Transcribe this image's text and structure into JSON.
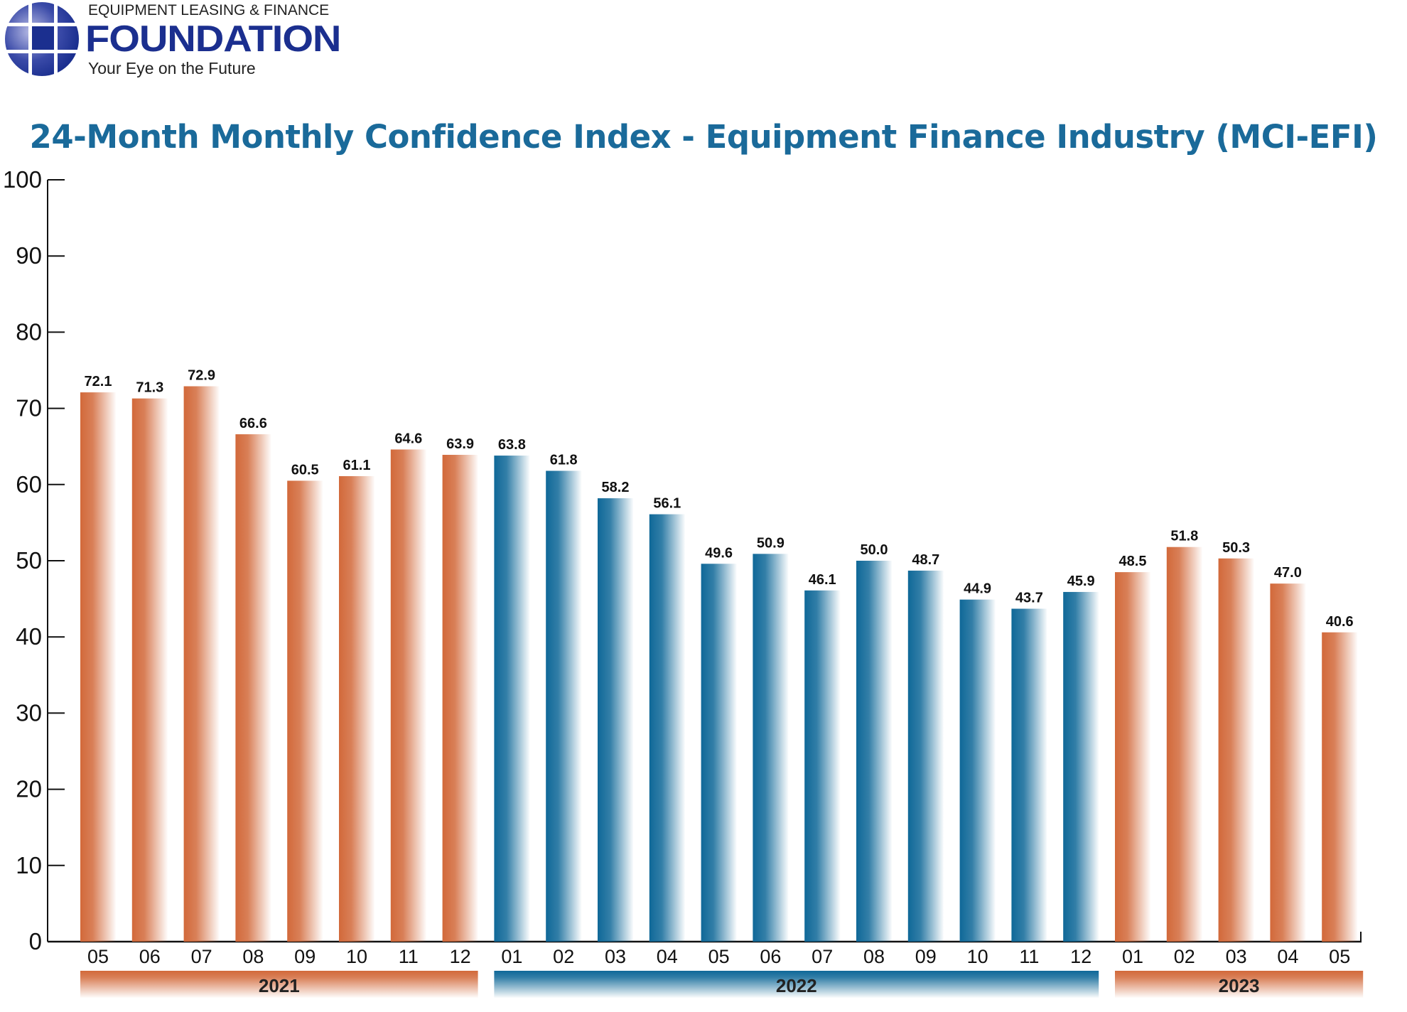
{
  "logo": {
    "top": "EQUIPMENT LEASING & FINANCE",
    "main": "FOUNDATION",
    "tagline": "Your Eye on the Future"
  },
  "chart_data": {
    "type": "bar",
    "title": "24-Month Monthly Confidence Index - Equipment Finance Industry (MCI-EFI)",
    "xlabel": "",
    "ylabel": "",
    "ylim": [
      0,
      100
    ],
    "yticks": [
      0,
      10,
      20,
      30,
      40,
      50,
      60,
      70,
      80,
      90,
      100
    ],
    "grid": false,
    "categories": [
      "05",
      "06",
      "07",
      "08",
      "09",
      "10",
      "11",
      "12",
      "01",
      "02",
      "03",
      "04",
      "05",
      "06",
      "07",
      "08",
      "09",
      "10",
      "11",
      "12",
      "01",
      "02",
      "03",
      "04",
      "05"
    ],
    "years": [
      {
        "label": "2021",
        "start": 0,
        "end": 7,
        "color": "#d2693a"
      },
      {
        "label": "2022",
        "start": 8,
        "end": 19,
        "color": "#0f6898"
      },
      {
        "label": "2023",
        "start": 20,
        "end": 24,
        "color": "#d2693a"
      }
    ],
    "values": [
      72.1,
      71.3,
      72.9,
      66.6,
      60.5,
      61.1,
      64.6,
      63.9,
      63.8,
      61.8,
      58.2,
      56.1,
      49.6,
      50.9,
      46.1,
      50.0,
      48.7,
      44.9,
      43.7,
      45.9,
      48.5,
      51.8,
      50.3,
      47.0,
      40.6
    ],
    "data_labels": [
      "72.1",
      "71.3",
      "72.9",
      "66.6",
      "60.5",
      "61.1",
      "64.6",
      "63.9",
      "63.8",
      "61.8",
      "58.2",
      "56.1",
      "49.6",
      "50.9",
      "46.1",
      "50.0",
      "48.7",
      "44.9",
      "43.7",
      "45.9",
      "48.5",
      "51.8",
      "50.3",
      "47.0",
      "40.6"
    ]
  }
}
